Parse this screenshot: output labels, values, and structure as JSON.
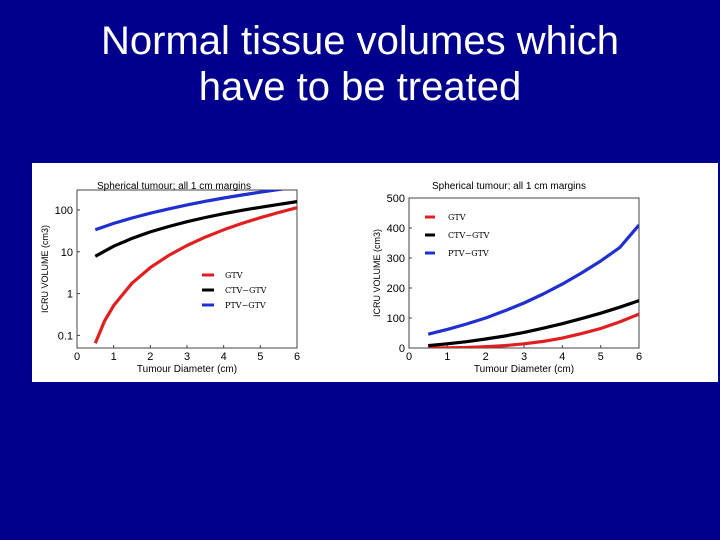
{
  "slide": {
    "title_line1": "Normal tissue volumes which",
    "title_line2": "have to be treated"
  },
  "colors": {
    "background": "#00008c",
    "gtv": "#e02020",
    "ctv_minus_gtv": "#000000",
    "ptv_minus_gtv": "#1f2fd0"
  },
  "chart_data": [
    {
      "type": "line",
      "title": "Spherical tumour; all 1 cm margins",
      "xlabel": "Tumour Diameter (cm)",
      "ylabel": "ICRU VOLUME (cm3)",
      "yscale": "log",
      "xlim": [
        0,
        6
      ],
      "ylim": [
        0.05,
        300
      ],
      "xticks": [
        "0",
        "1",
        "2",
        "3",
        "4",
        "5",
        "6"
      ],
      "yticks": [
        {
          "value": 0.1,
          "label": "0.1"
        },
        {
          "value": 1,
          "label": "1"
        },
        {
          "value": 10,
          "label": "10"
        },
        {
          "value": 100,
          "label": "100"
        }
      ],
      "legend_position": "lower-right",
      "series": [
        {
          "name": "GTV",
          "color": "#e02020",
          "x": [
            0.5,
            0.75,
            1,
            1.5,
            2,
            2.5,
            3,
            3.5,
            4,
            4.5,
            5,
            5.5,
            6
          ],
          "y": [
            0.065,
            0.22,
            0.52,
            1.77,
            4.19,
            8.18,
            14.1,
            22.4,
            33.5,
            47.7,
            65.4,
            87.1,
            113
          ]
        },
        {
          "name": "CTV−GTV",
          "color": "#000000",
          "x": [
            0.5,
            1,
            1.5,
            2,
            2.5,
            3,
            3.5,
            4,
            4.5,
            5,
            5.5,
            6
          ],
          "y": [
            7.79,
            13.6,
            20.9,
            29.8,
            40.3,
            52.4,
            66,
            81.2,
            97.9,
            116,
            136,
            158
          ]
        },
        {
          "name": "PTV−GTV",
          "color": "#1f2fd0",
          "x": [
            0.5,
            1,
            1.5,
            2,
            2.5,
            3,
            3.5,
            4,
            4.5,
            5,
            5.5,
            6
          ],
          "y": [
            33.6,
            47.7,
            64.2,
            83.8,
            106,
            132,
            161,
            193,
            228,
            266,
            308,
            354
          ]
        }
      ]
    },
    {
      "type": "line",
      "title": "Spherical tumour; all 1 cm margins",
      "xlabel": "Tumour Diameter (cm)",
      "ylabel": "ICRU VOLUME (cm3)",
      "yscale": "linear",
      "xlim": [
        0,
        6
      ],
      "ylim": [
        0,
        500
      ],
      "xticks": [
        "0",
        "1",
        "2",
        "3",
        "4",
        "5",
        "6"
      ],
      "yticks": [
        {
          "value": 0,
          "label": "0"
        },
        {
          "value": 100,
          "label": "100"
        },
        {
          "value": 200,
          "label": "200"
        },
        {
          "value": 300,
          "label": "300"
        },
        {
          "value": 400,
          "label": "400"
        },
        {
          "value": 500,
          "label": "500"
        }
      ],
      "legend_position": "upper-left",
      "series": [
        {
          "name": "GTV",
          "color": "#e02020",
          "x": [
            0.5,
            1,
            1.5,
            2,
            2.5,
            3,
            3.5,
            4,
            4.5,
            5,
            5.5,
            6
          ],
          "y": [
            0.07,
            0.5,
            1.8,
            4.2,
            8,
            14,
            22,
            33,
            48,
            65,
            87,
            113
          ]
        },
        {
          "name": "CTV−GTV",
          "color": "#000000",
          "x": [
            0.5,
            1,
            1.5,
            2,
            2.5,
            3,
            3.5,
            4,
            4.5,
            5,
            5.5,
            6
          ],
          "y": [
            8,
            14,
            21,
            30,
            40,
            52,
            66,
            81,
            98,
            116,
            136,
            158
          ]
        },
        {
          "name": "PTV−GTV",
          "color": "#1f2fd0",
          "x": [
            0.5,
            1,
            1.5,
            2,
            2.5,
            3,
            3.5,
            4,
            4.5,
            5,
            5.5,
            6
          ],
          "y": [
            46,
            62,
            80,
            100,
            124,
            150,
            180,
            213,
            250,
            290,
            335,
            410
          ]
        }
      ]
    }
  ]
}
